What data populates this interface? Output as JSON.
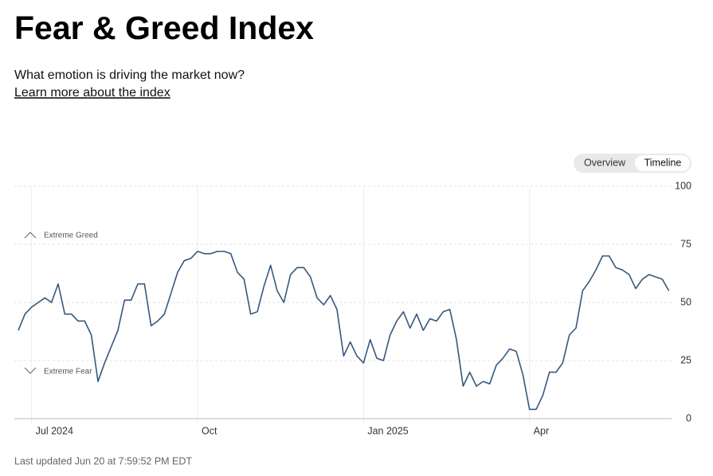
{
  "header": {
    "title": "Fear & Greed Index",
    "subtitle": "What emotion is driving the market now?",
    "link": "Learn more about the index",
    "tabs": [
      "Overview",
      "Timeline"
    ]
  },
  "footer": "Last updated Jun 20 at 7:59:52 PM EDT",
  "chart_data": {
    "type": "line",
    "color": "#36587f",
    "grid": true,
    "annotations": [
      "Extreme Greed",
      "Extreme Fear"
    ],
    "xlim": [
      2024.474,
      2025.464
    ],
    "ylim": [
      0,
      100
    ],
    "xticks": [
      {
        "value": 2024.5,
        "label": "Jul 2024"
      },
      {
        "value": 2024.75,
        "label": "Oct"
      },
      {
        "value": 2025.0,
        "label": "Jan 2025"
      },
      {
        "value": 2025.25,
        "label": "Apr"
      }
    ],
    "yticks": [
      0,
      25,
      50,
      75,
      100
    ],
    "x": [
      2024.48,
      2024.49,
      2024.5,
      2024.51,
      2024.52,
      2024.53,
      2024.54,
      2024.55,
      2024.56,
      2024.57,
      2024.58,
      2024.59,
      2024.6,
      2024.61,
      2024.62,
      2024.63,
      2024.64,
      2024.65,
      2024.66,
      2024.67,
      2024.68,
      2024.69,
      2024.7,
      2024.71,
      2024.72,
      2024.73,
      2024.74,
      2024.75,
      2024.76,
      2024.77,
      2024.78,
      2024.79,
      2024.8,
      2024.81,
      2024.82,
      2024.83,
      2024.84,
      2024.85,
      2024.86,
      2024.87,
      2024.88,
      2024.89,
      2024.9,
      2024.91,
      2024.92,
      2024.93,
      2024.94,
      2024.95,
      2024.96,
      2024.97,
      2024.98,
      2024.99,
      2025.0,
      2025.01,
      2025.02,
      2025.03,
      2025.04,
      2025.05,
      2025.06,
      2025.07,
      2025.08,
      2025.09,
      2025.1,
      2025.11,
      2025.12,
      2025.13,
      2025.14,
      2025.15,
      2025.16,
      2025.17,
      2025.18,
      2025.19,
      2025.2,
      2025.21,
      2025.22,
      2025.23,
      2025.24,
      2025.25,
      2025.26,
      2025.27,
      2025.28,
      2025.29,
      2025.3,
      2025.31,
      2025.32,
      2025.33,
      2025.34,
      2025.35,
      2025.36,
      2025.37,
      2025.38,
      2025.39,
      2025.4,
      2025.41,
      2025.42,
      2025.43,
      2025.44,
      2025.45,
      2025.46
    ],
    "values": [
      38,
      45,
      48,
      50,
      52,
      50,
      58,
      45,
      45,
      42,
      42,
      36,
      16,
      24,
      31,
      38,
      51,
      51,
      58,
      58,
      40,
      42,
      45,
      54,
      63,
      68,
      69,
      72,
      71,
      71,
      72,
      72,
      71,
      63,
      60,
      45,
      46,
      57,
      66,
      55,
      50,
      62,
      65,
      65,
      61,
      52,
      49,
      53,
      47,
      27,
      33,
      27,
      24,
      34,
      26,
      25,
      36,
      42,
      46,
      39,
      45,
      38,
      43,
      42,
      46,
      47,
      34,
      14,
      20,
      14,
      16,
      15,
      23,
      26,
      30,
      29,
      19,
      4,
      4,
      10,
      20,
      20,
      24,
      36,
      39,
      55,
      59,
      64,
      70,
      70,
      65,
      64,
      62,
      56,
      60,
      62,
      61,
      60,
      55
    ]
  }
}
